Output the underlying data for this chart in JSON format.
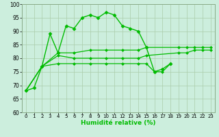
{
  "xlabel": "Humidité relative (%)",
  "background_color": "#cceedd",
  "grid_color": "#aaccaa",
  "line_color": "#00bb00",
  "xlim": [
    -0.5,
    23.5
  ],
  "ylim": [
    60,
    100
  ],
  "xticks": [
    0,
    1,
    2,
    3,
    4,
    5,
    6,
    7,
    8,
    9,
    10,
    11,
    12,
    13,
    14,
    15,
    16,
    17,
    18,
    19,
    20,
    21,
    22,
    23
  ],
  "yticks": [
    60,
    65,
    70,
    75,
    80,
    85,
    90,
    95,
    100
  ],
  "series": [
    {
      "x": [
        0,
        1,
        2,
        3,
        4,
        5,
        6,
        7,
        8,
        9,
        10,
        11,
        12,
        13,
        14,
        15,
        16,
        17,
        18
      ],
      "y": [
        68,
        69,
        77,
        89,
        82,
        92,
        91,
        95,
        96,
        95,
        97,
        96,
        92,
        91,
        90,
        84,
        75,
        76,
        78
      ],
      "marker": "D",
      "markersize": 2.5,
      "linewidth": 1.0
    },
    {
      "x": [
        0,
        2,
        4,
        6,
        8,
        10,
        12,
        14,
        15,
        19,
        20,
        21,
        22,
        23
      ],
      "y": [
        68,
        77,
        82,
        82,
        83,
        83,
        83,
        83,
        84,
        84,
        84,
        84,
        84,
        84
      ],
      "marker": "D",
      "markersize": 2.0,
      "linewidth": 0.9
    },
    {
      "x": [
        0,
        2,
        4,
        6,
        8,
        10,
        12,
        14,
        15,
        19,
        20,
        21,
        22,
        23
      ],
      "y": [
        68,
        77,
        81,
        80,
        80,
        80,
        80,
        80,
        81,
        82,
        82,
        83,
        83,
        83
      ],
      "marker": "D",
      "markersize": 2.0,
      "linewidth": 0.9
    },
    {
      "x": [
        0,
        2,
        4,
        6,
        8,
        10,
        12,
        14,
        15,
        16,
        17,
        18
      ],
      "y": [
        68,
        77,
        78,
        78,
        78,
        78,
        78,
        78,
        78,
        75,
        75,
        78
      ],
      "marker": "D",
      "markersize": 2.0,
      "linewidth": 0.9
    }
  ]
}
